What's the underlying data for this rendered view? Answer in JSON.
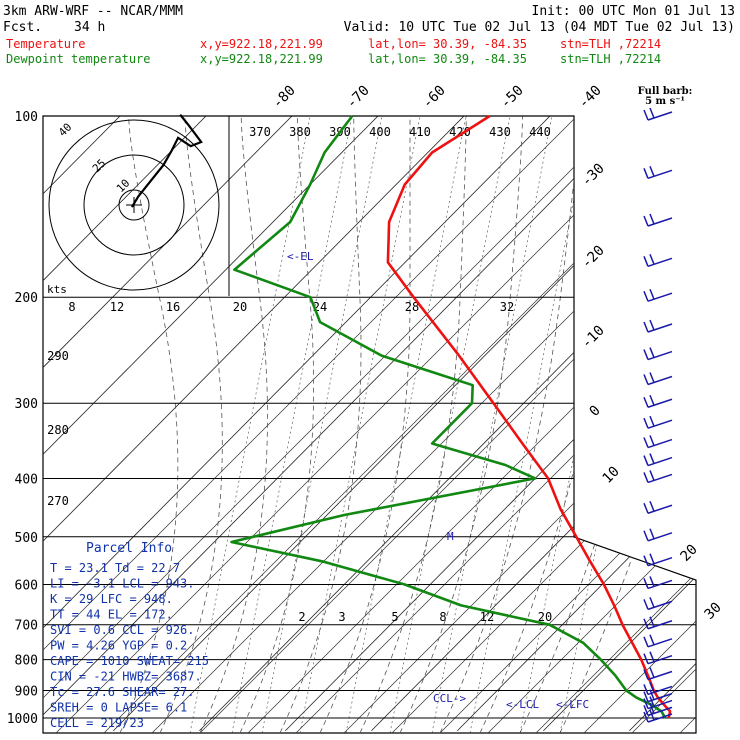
{
  "header": {
    "model": "3km ARW-WRF -- NCAR/MMM",
    "fcst_label": "Fcst.",
    "fcst_value": "34 h",
    "init": "Init: 00 UTC Mon 01 Jul 13",
    "valid": "Valid: 10 UTC Tue 02 Jul 13 (04 MDT Tue 02 Jul 13)",
    "temperature_label": "Temperature",
    "dewpoint_label": "Dewpoint temperature",
    "xy": "x,y=922.18,221.99",
    "latlon": "lat,lon= 30.39, -84.35",
    "station": "stn=TLH ,72214"
  },
  "colors": {
    "temperature": "#ee1111",
    "dewpoint": "#118811",
    "parcel_info": "#1133aa",
    "wind_barbs": "#1a1aaa",
    "grid": "#000000"
  },
  "barb_note": {
    "line1": "Full barb:",
    "line2": "5 m s⁻¹"
  },
  "hodograph": {
    "units": "kts",
    "ring_labels": [
      "10",
      "25",
      "40"
    ]
  },
  "chart_data": {
    "type": "line",
    "title": "",
    "pressure_levels": [
      100,
      200,
      300,
      400,
      500,
      600,
      700,
      800,
      900,
      1000
    ],
    "isotherm_labels": [
      "-80",
      "-70",
      "-60",
      "-50",
      "-40",
      "-30",
      "-20",
      "-10",
      "0",
      "10",
      "20",
      "30",
      "40"
    ],
    "theta_e_labels": [
      "370",
      "380",
      "390",
      "400",
      "410",
      "420",
      "430",
      "440"
    ],
    "mixing_ratio_labels_upper": [
      "8",
      "12",
      "16",
      "20",
      "24",
      "28",
      "32"
    ],
    "mixing_ratio_labels_lower": [
      "2",
      "3",
      "5",
      "8",
      "12",
      "20"
    ],
    "dry_adiabat_labels": [
      "290",
      "280",
      "270"
    ],
    "level_markers": [
      "<-EL",
      "CCL->",
      "<-LCL",
      "<-LFC"
    ],
    "pw_marker": "M",
    "series": [
      {
        "name": "Temperature",
        "points": [
          {
            "p": 1000,
            "t": 23.1
          },
          {
            "p": 975,
            "t": 22.5
          },
          {
            "p": 950,
            "t": 21.0
          },
          {
            "p": 925,
            "t": 19.5
          },
          {
            "p": 900,
            "t": 18.2
          },
          {
            "p": 850,
            "t": 15.8
          },
          {
            "p": 800,
            "t": 13.2
          },
          {
            "p": 750,
            "t": 10.2
          },
          {
            "p": 700,
            "t": 7.0
          },
          {
            "p": 650,
            "t": 3.8
          },
          {
            "p": 600,
            "t": 0.2
          },
          {
            "p": 550,
            "t": -4.0
          },
          {
            "p": 500,
            "t": -8.5
          },
          {
            "p": 450,
            "t": -13.5
          },
          {
            "p": 400,
            "t": -18.5
          },
          {
            "p": 350,
            "t": -25.5
          },
          {
            "p": 300,
            "t": -33.5
          },
          {
            "p": 250,
            "t": -43.0
          },
          {
            "p": 200,
            "t": -55.0
          },
          {
            "p": 175,
            "t": -62.0
          },
          {
            "p": 150,
            "t": -66.5
          },
          {
            "p": 130,
            "t": -69.0
          },
          {
            "p": 115,
            "t": -69.5
          },
          {
            "p": 100,
            "t": -67.0
          }
        ]
      },
      {
        "name": "Dewpoint temperature",
        "points": [
          {
            "p": 1000,
            "t": 22.7
          },
          {
            "p": 975,
            "t": 21.5
          },
          {
            "p": 950,
            "t": 19.5
          },
          {
            "p": 925,
            "t": 17.0
          },
          {
            "p": 900,
            "t": 15.0
          },
          {
            "p": 850,
            "t": 12.0
          },
          {
            "p": 800,
            "t": 8.5
          },
          {
            "p": 750,
            "t": 4.5
          },
          {
            "p": 700,
            "t": -1.5
          },
          {
            "p": 650,
            "t": -14.0
          },
          {
            "p": 600,
            "t": -23.0
          },
          {
            "p": 550,
            "t": -35.0
          },
          {
            "p": 510,
            "t": -48.0
          },
          {
            "p": 460,
            "t": -38.0
          },
          {
            "p": 400,
            "t": -20.0
          },
          {
            "p": 380,
            "t": -25.0
          },
          {
            "p": 350,
            "t": -36.0
          },
          {
            "p": 300,
            "t": -36.0
          },
          {
            "p": 280,
            "t": -38.0
          },
          {
            "p": 250,
            "t": -52.0
          },
          {
            "p": 220,
            "t": -63.0
          },
          {
            "p": 200,
            "t": -67.0
          },
          {
            "p": 180,
            "t": -79.0
          },
          {
            "p": 150,
            "t": -78.0
          },
          {
            "p": 130,
            "t": -80.0
          },
          {
            "p": 115,
            "t": -82.0
          },
          {
            "p": 100,
            "t": -83.0
          }
        ]
      }
    ],
    "wind_barb_levels": [
      1000,
      975,
      950,
      925,
      900,
      850,
      800,
      750,
      700,
      650,
      600,
      550,
      500,
      450,
      400,
      375,
      350,
      325,
      300,
      275,
      250,
      225,
      200,
      175,
      150,
      125,
      100
    ],
    "hodograph_trace": [
      {
        "u": -1,
        "v": -1
      },
      {
        "u": 2,
        "v": 4
      },
      {
        "u": 6,
        "v": 9
      },
      {
        "u": 10,
        "v": 14
      },
      {
        "u": 14,
        "v": 19
      },
      {
        "u": 18,
        "v": 26
      },
      {
        "u": 21,
        "v": 32
      },
      {
        "u": 27,
        "v": 28
      },
      {
        "u": 32,
        "v": 30
      },
      {
        "u": 26,
        "v": 38
      },
      {
        "u": 22,
        "v": 43
      }
    ]
  },
  "parcel_info": {
    "title": "Parcel Info",
    "rows": [
      "T  =    23.1  Td =  22.7",
      "LI =    -3.1  LCL =  943.",
      "K  =      29  LFC =  948.",
      "TT =      44  EL  =  172.",
      "SVI =    0.6  CCL =  926.",
      "PW =    4.26  YGP =   0.2",
      "CAPE =  1010  SWEAT=  215",
      "CIN =    -21  HWBZ= 3687.",
      "Tc =    27.6  SHEAR=  27.",
      "SREH =     0  LAPSE=  6.1",
      "CELL = 219/23"
    ]
  }
}
